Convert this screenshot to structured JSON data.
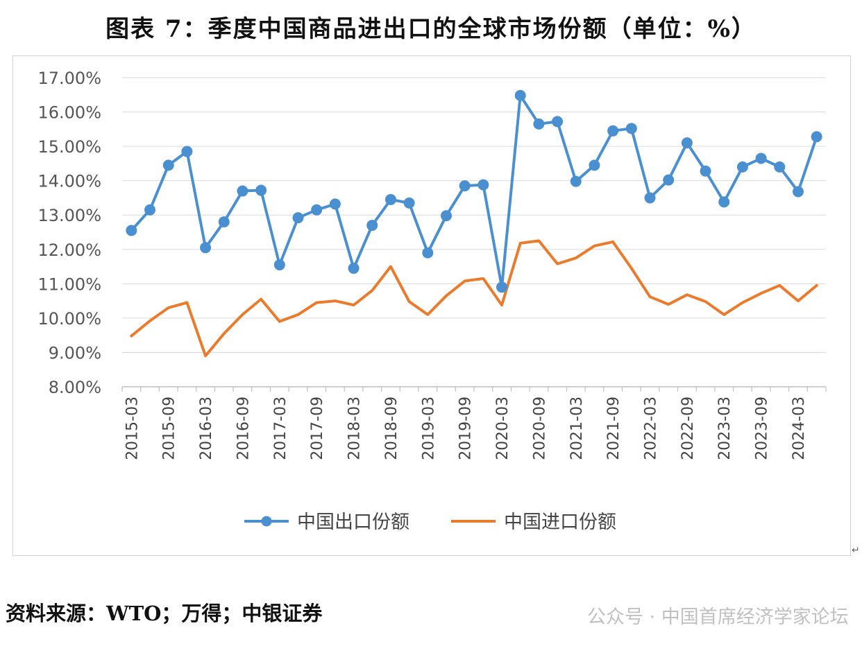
{
  "title": "图表 7：季度中国商品进出口的全球市场份额（单位：%）",
  "source": "资料来源：WTO；万得；中银证券",
  "watermark": "公众号 · 中国首席经济学家论坛",
  "chart_data": {
    "type": "line",
    "title": "图表 7：季度中国商品进出口的全球市场份额（单位：%）",
    "xlabel": "",
    "ylabel": "",
    "ylim": [
      8.0,
      17.0
    ],
    "yticks": [
      "8.00%",
      "9.00%",
      "10.00%",
      "11.00%",
      "12.00%",
      "13.00%",
      "14.00%",
      "15.00%",
      "16.00%",
      "17.00%"
    ],
    "grid": true,
    "legend": "bottom-center",
    "x": [
      "2015-03",
      "2015-06",
      "2015-09",
      "2015-12",
      "2016-03",
      "2016-06",
      "2016-09",
      "2016-12",
      "2017-03",
      "2017-06",
      "2017-09",
      "2017-12",
      "2018-03",
      "2018-06",
      "2018-09",
      "2018-12",
      "2019-03",
      "2019-06",
      "2019-09",
      "2019-12",
      "2020-03",
      "2020-06",
      "2020-09",
      "2020-12",
      "2021-03",
      "2021-06",
      "2021-09",
      "2021-12",
      "2022-03",
      "2022-06",
      "2022-09",
      "2022-12",
      "2023-03",
      "2023-06",
      "2023-09",
      "2023-12",
      "2024-03",
      "2024-06"
    ],
    "xtick_labels": [
      "2015-03",
      "2015-09",
      "2016-03",
      "2016-09",
      "2017-03",
      "2017-09",
      "2018-03",
      "2018-09",
      "2019-03",
      "2019-09",
      "2020-03",
      "2020-09",
      "2021-03",
      "2021-09",
      "2022-03",
      "2022-09",
      "2023-03",
      "2023-09",
      "2024-03"
    ],
    "series": [
      {
        "name": "中国出口份额",
        "color": "#4a8fcf",
        "marker": true,
        "values": [
          12.55,
          13.15,
          14.45,
          14.85,
          12.05,
          12.8,
          13.7,
          13.72,
          11.55,
          12.92,
          13.15,
          13.32,
          11.45,
          12.7,
          13.45,
          13.35,
          11.9,
          12.98,
          13.85,
          13.88,
          10.9,
          16.48,
          15.65,
          15.72,
          13.98,
          14.45,
          15.45,
          15.52,
          13.5,
          14.02,
          15.1,
          14.28,
          13.38,
          14.4,
          14.65,
          14.4,
          13.68,
          15.28
        ]
      },
      {
        "name": "中国进口份额",
        "color": "#ea7a2c",
        "marker": false,
        "values": [
          9.48,
          9.92,
          10.3,
          10.45,
          8.9,
          9.55,
          10.1,
          10.55,
          9.9,
          10.1,
          10.45,
          10.5,
          10.38,
          10.8,
          11.5,
          10.48,
          10.1,
          10.65,
          11.08,
          11.15,
          10.38,
          12.18,
          12.25,
          11.58,
          11.75,
          12.1,
          12.22,
          11.45,
          10.62,
          10.4,
          10.68,
          10.48,
          10.1,
          10.45,
          10.72,
          10.95,
          10.5,
          10.95
        ]
      }
    ]
  }
}
